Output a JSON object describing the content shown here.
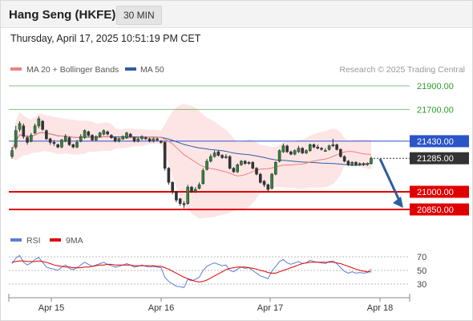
{
  "header": {
    "title": "Hang Seng (HKFE)",
    "timeframe": "30 MIN"
  },
  "datetime": "Thursday, April 17, 2025 10:51:19 PM CET",
  "legend": {
    "ma20": "MA 20 + Bollinger Bands",
    "ma50": "MA 50",
    "credit": "Research © 2025 Trading Central",
    "colors": {
      "ma20": "#f08080",
      "ma50": "#2e5e9e"
    }
  },
  "chart_data": {
    "type": "candlestick",
    "instrument": "Hang Seng (HKFE)",
    "timeframe": "30 MIN",
    "xlabels": [
      "Apr 15",
      "Apr 16",
      "Apr 17",
      "Apr 18"
    ],
    "price_ylim": [
      20800,
      22000
    ],
    "levels": [
      {
        "value": 21900,
        "label": "21900.00",
        "kind": "resistance",
        "color": "#2e9c2e"
      },
      {
        "value": 21700,
        "label": "21700.00",
        "kind": "resistance",
        "color": "#2e9c2e"
      },
      {
        "value": 21430,
        "label": "21430.00",
        "kind": "pivot",
        "color": "#2a55c8"
      },
      {
        "value": 21000,
        "label": "21000.00",
        "kind": "support",
        "color": "#e00000"
      },
      {
        "value": 20850,
        "label": "20850.00",
        "kind": "support",
        "color": "#e00000"
      }
    ],
    "last_price": {
      "value": 21285,
      "label": "21285.00"
    },
    "forecast": {
      "from": 21280,
      "to": 20850,
      "direction": "down"
    },
    "close": [
      21350,
      21520,
      21580,
      21470,
      21420,
      21480,
      21560,
      21620,
      21530,
      21450,
      21420,
      21410,
      21380,
      21440,
      21470,
      21400,
      21380,
      21420,
      21470,
      21520,
      21480,
      21440,
      21470,
      21500,
      21520,
      21490,
      21460,
      21430,
      21450,
      21470,
      21500,
      21470,
      21430,
      21450,
      21470,
      21450,
      21430,
      21450,
      21440,
      21420,
      21200,
      21080,
      21000,
      20930,
      20900,
      20890,
      21040,
      21000,
      21020,
      21060,
      21180,
      21260,
      21300,
      21330,
      21310,
      21290,
      21300,
      21200,
      21170,
      21230,
      21260,
      21240,
      21250,
      21200,
      21150,
      21080,
      21060,
      21020,
      21150,
      21250,
      21350,
      21390,
      21340,
      21320,
      21350,
      21370,
      21330,
      21350,
      21400,
      21380,
      21370,
      21360,
      21350,
      21390,
      21400,
      21360,
      21300,
      21260,
      21230,
      21250,
      21230,
      21240,
      21230,
      21240,
      21285
    ],
    "open": [
      21300,
      21380,
      21530,
      21560,
      21460,
      21430,
      21500,
      21560,
      21600,
      21520,
      21450,
      21420,
      21400,
      21380,
      21430,
      21460,
      21400,
      21380,
      21430,
      21460,
      21510,
      21480,
      21440,
      21470,
      21490,
      21510,
      21480,
      21460,
      21430,
      21450,
      21460,
      21490,
      21460,
      21430,
      21450,
      21460,
      21450,
      21430,
      21450,
      21430,
      21420,
      21200,
      21080,
      21000,
      20940,
      20900,
      20900,
      21040,
      21000,
      21030,
      21070,
      21190,
      21260,
      21300,
      21340,
      21310,
      21290,
      21300,
      21200,
      21170,
      21230,
      21260,
      21240,
      21250,
      21200,
      21150,
      21090,
      21060,
      21030,
      21150,
      21260,
      21340,
      21390,
      21340,
      21320,
      21340,
      21370,
      21330,
      21350,
      21400,
      21380,
      21370,
      21350,
      21360,
      21390,
      21400,
      21360,
      21300,
      21260,
      21230,
      21250,
      21230,
      21240,
      21230,
      21240
    ],
    "high": [
      21380,
      21560,
      21600,
      21580,
      21480,
      21500,
      21580,
      21640,
      21610,
      21530,
      21460,
      21440,
      21410,
      21450,
      21490,
      21470,
      21410,
      21440,
      21490,
      21530,
      21520,
      21490,
      21480,
      21510,
      21530,
      21520,
      21490,
      21470,
      21460,
      21480,
      21510,
      21500,
      21470,
      21460,
      21480,
      21470,
      21460,
      21460,
      21460,
      21440,
      21430,
      21210,
      21090,
      21010,
      20950,
      20920,
      21060,
      21050,
      21040,
      21080,
      21200,
      21280,
      21320,
      21350,
      21350,
      21320,
      21320,
      21310,
      21210,
      21240,
      21270,
      21270,
      21260,
      21260,
      21210,
      21160,
      21100,
      21070,
      21160,
      21260,
      21360,
      21410,
      21400,
      21350,
      21360,
      21390,
      21380,
      21360,
      21410,
      21410,
      21400,
      21380,
      21370,
      21400,
      21450,
      21410,
      21370,
      21310,
      21270,
      21260,
      21260,
      21250,
      21250,
      21250,
      21300
    ],
    "low": [
      21280,
      21360,
      21510,
      21450,
      21400,
      21420,
      21490,
      21540,
      21520,
      21440,
      21400,
      21390,
      21370,
      21370,
      21420,
      21390,
      21370,
      21370,
      21420,
      21450,
      21470,
      21430,
      21430,
      21460,
      21480,
      21480,
      21450,
      21420,
      21420,
      21440,
      21450,
      21460,
      21420,
      21420,
      21440,
      21440,
      21420,
      21420,
      21430,
      21410,
      21180,
      21060,
      20980,
      20910,
      20880,
      20860,
      20890,
      20990,
      20990,
      21020,
      21060,
      21180,
      21250,
      21290,
      21300,
      21280,
      21280,
      21190,
      21160,
      21160,
      21220,
      21230,
      21230,
      21190,
      21140,
      21070,
      21040,
      21000,
      21020,
      21140,
      21250,
      21330,
      21330,
      21310,
      21310,
      21330,
      21320,
      21320,
      21340,
      21370,
      21360,
      21350,
      21340,
      21350,
      21380,
      21350,
      21290,
      21250,
      21220,
      21220,
      21220,
      21220,
      21220,
      21220,
      21230
    ],
    "indicator": {
      "legend": [
        "RSI",
        "9MA"
      ],
      "colors": {
        "rsi": "#5b7fd4",
        "ma9": "#e00000"
      },
      "ticks": [
        70,
        50,
        30
      ],
      "ylim": [
        20,
        80
      ],
      "rsi": [
        60,
        68,
        72,
        62,
        58,
        61,
        66,
        69,
        62,
        55,
        53,
        52,
        50,
        55,
        58,
        53,
        51,
        54,
        58,
        62,
        59,
        56,
        58,
        60,
        62,
        59,
        57,
        55,
        56,
        58,
        60,
        58,
        55,
        56,
        58,
        56,
        55,
        56,
        55,
        54,
        40,
        34,
        30,
        27,
        26,
        25,
        37,
        35,
        37,
        40,
        50,
        56,
        59,
        61,
        59,
        57,
        58,
        50,
        48,
        52,
        55,
        53,
        54,
        50,
        46,
        42,
        40,
        38,
        49,
        56,
        63,
        66,
        61,
        59,
        61,
        63,
        60,
        61,
        65,
        63,
        62,
        61,
        60,
        63,
        64,
        60,
        54,
        49,
        46,
        48,
        46,
        47,
        46,
        47,
        52
      ],
      "ma9": [
        62,
        63,
        64,
        64,
        63,
        63,
        63,
        64,
        63,
        62,
        60,
        58,
        57,
        56,
        55,
        55,
        54,
        54,
        54,
        55,
        55,
        56,
        57,
        58,
        58,
        59,
        59,
        58,
        58,
        58,
        58,
        58,
        57,
        57,
        57,
        57,
        57,
        57,
        56,
        56,
        54,
        52,
        49,
        46,
        43,
        40,
        38,
        36,
        34,
        33,
        34,
        36,
        39,
        42,
        45,
        48,
        51,
        53,
        54,
        55,
        55,
        55,
        54,
        53,
        52,
        50,
        49,
        47,
        46,
        46,
        48,
        50,
        52,
        54,
        56,
        58,
        60,
        61,
        62,
        62,
        62,
        62,
        62,
        62,
        62,
        61,
        60,
        58,
        56,
        54,
        52,
        50,
        49,
        48,
        48
      ]
    }
  }
}
